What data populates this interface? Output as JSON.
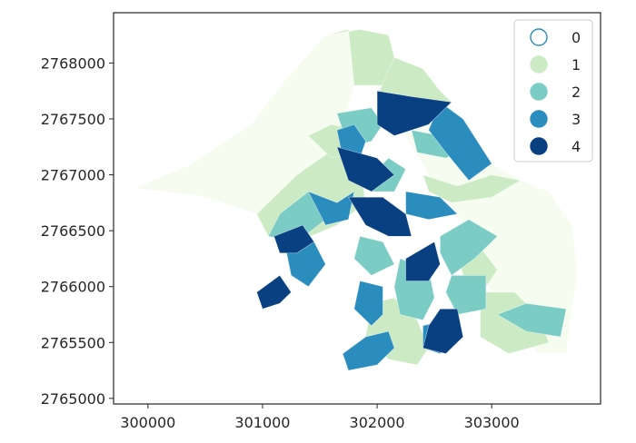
{
  "chart_data": {
    "type": "choropleth",
    "title": "",
    "xlabel": "",
    "ylabel": "",
    "xlim": [
      299700,
      303950
    ],
    "ylim": [
      2764950,
      2768450
    ],
    "x_ticks": [
      300000,
      301000,
      302000,
      303000
    ],
    "y_ticks": [
      2765000,
      2765500,
      2766000,
      2766500,
      2767000,
      2767500,
      2768000
    ],
    "grid": false,
    "legend": {
      "location": "top-right",
      "entries": [
        {
          "label": "0",
          "color": "#f7fcf0",
          "hollow": true
        },
        {
          "label": "1",
          "color": "#ccebc5"
        },
        {
          "label": "2",
          "color": "#7bccc4"
        },
        {
          "label": "3",
          "color": "#2b8cbe"
        },
        {
          "label": "4",
          "color": "#084081"
        }
      ]
    },
    "class_colors": [
      "#f7fcf0",
      "#ccebc5",
      "#7bccc4",
      "#2b8cbe",
      "#084081"
    ],
    "regions": [
      {
        "class": 0,
        "points": [
          [
            299880,
            2766880
          ],
          [
            300350,
            2767080
          ],
          [
            300900,
            2767450
          ],
          [
            301200,
            2767850
          ],
          [
            301550,
            2768250
          ],
          [
            301750,
            2768300
          ],
          [
            301800,
            2767800
          ],
          [
            301650,
            2767250
          ],
          [
            301300,
            2767000
          ],
          [
            300950,
            2766650
          ],
          [
            300500,
            2766800
          ],
          [
            300150,
            2766850
          ]
        ]
      },
      {
        "class": 0,
        "points": [
          [
            301750,
            2768300
          ],
          [
            301900,
            2768200
          ],
          [
            302150,
            2768050
          ],
          [
            302400,
            2767950
          ],
          [
            302550,
            2767750
          ],
          [
            302750,
            2767450
          ],
          [
            303000,
            2767100
          ],
          [
            303250,
            2766950
          ],
          [
            303500,
            2766850
          ],
          [
            303700,
            2766550
          ],
          [
            303750,
            2766100
          ],
          [
            303700,
            2765800
          ],
          [
            303650,
            2765400
          ],
          [
            303400,
            2765400
          ],
          [
            303250,
            2765650
          ],
          [
            303000,
            2765900
          ],
          [
            302900,
            2766250
          ],
          [
            302700,
            2766650
          ],
          [
            302450,
            2767000
          ],
          [
            302250,
            2767350
          ],
          [
            302050,
            2767800
          ],
          [
            301800,
            2767800
          ]
        ]
      },
      {
        "class": 1,
        "points": [
          [
            301550,
            2768250
          ],
          [
            301750,
            2768300
          ],
          [
            301800,
            2767800
          ],
          [
            302050,
            2767800
          ],
          [
            302150,
            2768050
          ],
          [
            302100,
            2768250
          ],
          [
            301850,
            2768300
          ]
        ]
      },
      {
        "class": 1,
        "points": [
          [
            302150,
            2768050
          ],
          [
            302400,
            2767950
          ],
          [
            302550,
            2767750
          ],
          [
            302650,
            2767650
          ],
          [
            302500,
            2767550
          ],
          [
            302150,
            2767550
          ],
          [
            302000,
            2767700
          ]
        ]
      },
      {
        "class": 1,
        "points": [
          [
            300950,
            2766650
          ],
          [
            301300,
            2767000
          ],
          [
            301650,
            2767250
          ],
          [
            301850,
            2767050
          ],
          [
            301900,
            2766750
          ],
          [
            301650,
            2766550
          ],
          [
            301300,
            2766400
          ],
          [
            301050,
            2766450
          ]
        ]
      },
      {
        "class": 1,
        "points": [
          [
            302400,
            2767000
          ],
          [
            302700,
            2766900
          ],
          [
            303000,
            2767000
          ],
          [
            303250,
            2766950
          ],
          [
            303000,
            2766800
          ],
          [
            302650,
            2766750
          ],
          [
            302450,
            2766850
          ]
        ]
      },
      {
        "class": 1,
        "points": [
          [
            301950,
            2765850
          ],
          [
            302150,
            2765900
          ],
          [
            302350,
            2765700
          ],
          [
            302450,
            2765450
          ],
          [
            302350,
            2765300
          ],
          [
            302100,
            2765350
          ],
          [
            301900,
            2765550
          ]
        ]
      },
      {
        "class": 1,
        "points": [
          [
            302900,
            2765950
          ],
          [
            303200,
            2765950
          ],
          [
            303400,
            2765750
          ],
          [
            303500,
            2765500
          ],
          [
            303150,
            2765400
          ],
          [
            302900,
            2765550
          ]
        ]
      },
      {
        "class": 1,
        "points": [
          [
            301400,
            2767350
          ],
          [
            301600,
            2767450
          ],
          [
            301850,
            2767400
          ],
          [
            301800,
            2767200
          ],
          [
            301600,
            2767150
          ]
        ]
      },
      {
        "class": 1,
        "points": [
          [
            302700,
            2766300
          ],
          [
            302900,
            2766350
          ],
          [
            303050,
            2766150
          ],
          [
            302950,
            2766000
          ],
          [
            302750,
            2766100
          ]
        ]
      },
      {
        "class": 2,
        "points": [
          [
            301650,
            2767550
          ],
          [
            301950,
            2767600
          ],
          [
            302050,
            2767450
          ],
          [
            301950,
            2767300
          ],
          [
            301750,
            2767250
          ]
        ]
      },
      {
        "class": 2,
        "points": [
          [
            302300,
            2767400
          ],
          [
            302550,
            2767350
          ],
          [
            302750,
            2767500
          ],
          [
            302800,
            2767250
          ],
          [
            302600,
            2767150
          ],
          [
            302350,
            2767200
          ]
        ]
      },
      {
        "class": 2,
        "points": [
          [
            301050,
            2766450
          ],
          [
            301300,
            2766400
          ],
          [
            301550,
            2766600
          ],
          [
            301650,
            2766750
          ],
          [
            301400,
            2766850
          ],
          [
            301150,
            2766650
          ]
        ]
      },
      {
        "class": 2,
        "points": [
          [
            301950,
            2766850
          ],
          [
            302150,
            2766850
          ],
          [
            302250,
            2767050
          ],
          [
            302100,
            2767150
          ],
          [
            301950,
            2767000
          ]
        ]
      },
      {
        "class": 2,
        "points": [
          [
            301850,
            2766450
          ],
          [
            302050,
            2766400
          ],
          [
            302150,
            2766200
          ],
          [
            301950,
            2766100
          ],
          [
            301800,
            2766250
          ]
        ]
      },
      {
        "class": 2,
        "points": [
          [
            302200,
            2766250
          ],
          [
            302450,
            2766150
          ],
          [
            302500,
            2765900
          ],
          [
            302400,
            2765700
          ],
          [
            302200,
            2765750
          ],
          [
            302150,
            2766000
          ]
        ]
      },
      {
        "class": 2,
        "points": [
          [
            302550,
            2766450
          ],
          [
            302800,
            2766600
          ],
          [
            303050,
            2766450
          ],
          [
            302850,
            2766250
          ],
          [
            302650,
            2766100
          ],
          [
            302550,
            2766300
          ]
        ]
      },
      {
        "class": 2,
        "points": [
          [
            302650,
            2766100
          ],
          [
            302950,
            2766100
          ],
          [
            302950,
            2765800
          ],
          [
            302700,
            2765750
          ],
          [
            302600,
            2765950
          ]
        ]
      },
      {
        "class": 2,
        "points": [
          [
            303050,
            2765750
          ],
          [
            303300,
            2765600
          ],
          [
            303600,
            2765550
          ],
          [
            303650,
            2765800
          ],
          [
            303300,
            2765850
          ]
        ]
      },
      {
        "class": 3,
        "points": [
          [
            301650,
            2767400
          ],
          [
            301800,
            2767450
          ],
          [
            301900,
            2767300
          ],
          [
            301850,
            2767150
          ],
          [
            301700,
            2767150
          ]
        ]
      },
      {
        "class": 3,
        "points": [
          [
            302550,
            2767650
          ],
          [
            302750,
            2767500
          ],
          [
            303000,
            2767100
          ],
          [
            302800,
            2766950
          ],
          [
            302600,
            2767200
          ],
          [
            302450,
            2767400
          ]
        ]
      },
      {
        "class": 3,
        "points": [
          [
            301400,
            2766850
          ],
          [
            301650,
            2766750
          ],
          [
            301800,
            2766850
          ],
          [
            301750,
            2766600
          ],
          [
            301550,
            2766550
          ]
        ]
      },
      {
        "class": 3,
        "points": [
          [
            301200,
            2766350
          ],
          [
            301450,
            2766400
          ],
          [
            301550,
            2766200
          ],
          [
            301400,
            2766000
          ],
          [
            301250,
            2766100
          ]
        ]
      },
      {
        "class": 3,
        "points": [
          [
            301850,
            2766050
          ],
          [
            302050,
            2766000
          ],
          [
            302050,
            2765750
          ],
          [
            301950,
            2765650
          ],
          [
            301800,
            2765800
          ]
        ]
      },
      {
        "class": 3,
        "points": [
          [
            302250,
            2766850
          ],
          [
            302550,
            2766800
          ],
          [
            302700,
            2766650
          ],
          [
            302450,
            2766600
          ],
          [
            302250,
            2766650
          ]
        ]
      },
      {
        "class": 3,
        "points": [
          [
            302400,
            2765650
          ],
          [
            302600,
            2765700
          ],
          [
            302700,
            2765550
          ],
          [
            302550,
            2765400
          ],
          [
            302400,
            2765450
          ]
        ]
      },
      {
        "class": 3,
        "points": [
          [
            301750,
            2765250
          ],
          [
            302000,
            2765300
          ],
          [
            302150,
            2765450
          ],
          [
            302100,
            2765600
          ],
          [
            301900,
            2765550
          ],
          [
            301700,
            2765400
          ]
        ]
      },
      {
        "class": 4,
        "points": [
          [
            302000,
            2767750
          ],
          [
            302300,
            2767700
          ],
          [
            302650,
            2767650
          ],
          [
            302450,
            2767450
          ],
          [
            302150,
            2767350
          ],
          [
            302000,
            2767450
          ]
        ]
      },
      {
        "class": 4,
        "points": [
          [
            301650,
            2767250
          ],
          [
            302000,
            2767150
          ],
          [
            302150,
            2767000
          ],
          [
            301950,
            2766850
          ],
          [
            301750,
            2766950
          ]
        ]
      },
      {
        "class": 4,
        "points": [
          [
            301750,
            2766800
          ],
          [
            302050,
            2766800
          ],
          [
            302250,
            2766650
          ],
          [
            302300,
            2766450
          ],
          [
            302100,
            2766450
          ],
          [
            301900,
            2766550
          ]
        ]
      },
      {
        "class": 4,
        "points": [
          [
            301100,
            2766450
          ],
          [
            301350,
            2766550
          ],
          [
            301450,
            2766400
          ],
          [
            301300,
            2766300
          ],
          [
            301150,
            2766300
          ]
        ]
      },
      {
        "class": 4,
        "points": [
          [
            300950,
            2765950
          ],
          [
            301150,
            2766100
          ],
          [
            301250,
            2765950
          ],
          [
            301150,
            2765850
          ],
          [
            301000,
            2765800
          ]
        ]
      },
      {
        "class": 4,
        "points": [
          [
            302250,
            2766250
          ],
          [
            302500,
            2766400
          ],
          [
            302550,
            2766200
          ],
          [
            302450,
            2766050
          ],
          [
            302250,
            2766050
          ]
        ]
      },
      {
        "class": 4,
        "points": [
          [
            302400,
            2765450
          ],
          [
            302600,
            2765400
          ],
          [
            302750,
            2765550
          ],
          [
            302700,
            2765800
          ],
          [
            302550,
            2765800
          ],
          [
            302450,
            2765650
          ]
        ]
      }
    ]
  }
}
